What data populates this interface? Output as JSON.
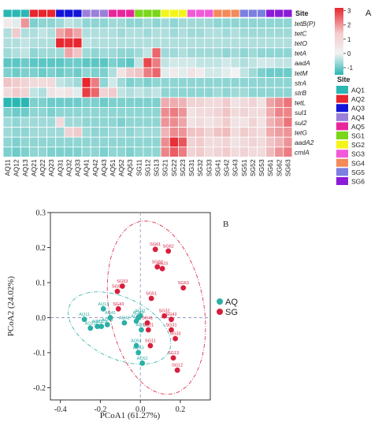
{
  "panels": {
    "a_label": "A",
    "b_label": "B"
  },
  "heatmap": {
    "site_row_label": "Site",
    "samples": [
      "AQ11",
      "AQ12",
      "AQ13",
      "AQ21",
      "AQ22",
      "AQ23",
      "AQ31",
      "AQ32",
      "AQ33",
      "AQ41",
      "AQ42",
      "AQ43",
      "AQ51",
      "AQ52",
      "AQ53",
      "SG11",
      "SG12",
      "SG13",
      "SG21",
      "SG22",
      "SG23",
      "SG31",
      "SG32",
      "SG33",
      "SG41",
      "SG42",
      "SG43",
      "SG51",
      "SG52",
      "SG53",
      "SG61",
      "SG62",
      "SG63"
    ],
    "sites": [
      "AQ1",
      "AQ2",
      "AQ3",
      "AQ4",
      "AQ5",
      "SG1",
      "SG2",
      "SG3",
      "SG4",
      "SG5",
      "SG6"
    ],
    "site_colors": [
      "#2ab7b4",
      "#e8262e",
      "#1413d8",
      "#9b7fd9",
      "#e8269b",
      "#7ad61a",
      "#f3f51a",
      "#f05ad9",
      "#f28a5a",
      "#7b7fe0",
      "#8a1bd6"
    ],
    "genes": [
      "tetB(P)",
      "tetC",
      "tetO",
      "tetA",
      "aadA",
      "tetM",
      "strA",
      "strB",
      "tetL",
      "sul1",
      "sul2",
      "tetG",
      "aadA2",
      "cmlA"
    ],
    "values": [
      [
        0.1,
        -0.1,
        1.2,
        -0.7,
        -0.6,
        -0.6,
        -0.5,
        -0.3,
        -0.4,
        -0.6,
        -0.6,
        -0.6,
        -0.5,
        -0.5,
        -0.6,
        -0.6,
        -0.5,
        -0.6,
        -0.5,
        -0.6,
        -0.5,
        -0.5,
        -0.5,
        -0.5,
        -0.6,
        -0.6,
        -0.6,
        -0.6,
        -0.6,
        -0.6,
        -0.6,
        -0.6,
        -0.6
      ],
      [
        -0.4,
        0.5,
        -0.4,
        -0.4,
        -0.3,
        -0.4,
        1.0,
        1.4,
        1.0,
        -0.4,
        -0.4,
        -0.4,
        -0.4,
        -0.5,
        -0.4,
        -0.4,
        -0.5,
        -0.4,
        -0.4,
        -0.5,
        -0.4,
        -0.5,
        -0.5,
        -0.4,
        -0.4,
        -0.5,
        -0.4,
        -0.5,
        -0.5,
        -0.5,
        -0.5,
        -0.5,
        -0.5
      ],
      [
        -0.4,
        -0.4,
        -0.3,
        -0.4,
        -0.4,
        -0.4,
        2.8,
        2.5,
        2.7,
        -0.3,
        -0.4,
        -0.4,
        -0.4,
        -0.4,
        -0.4,
        -0.4,
        -0.4,
        -0.4,
        -0.4,
        -0.4,
        -0.4,
        -0.4,
        -0.4,
        -0.4,
        -0.4,
        -0.4,
        -0.4,
        -0.4,
        -0.4,
        -0.4,
        -0.4,
        -0.4,
        -0.4
      ],
      [
        -0.5,
        -0.4,
        -0.3,
        -0.6,
        -0.5,
        -0.5,
        -0.5,
        1.0,
        0.6,
        -0.5,
        -0.6,
        -0.5,
        -0.5,
        -0.6,
        -0.6,
        -0.5,
        -0.3,
        1.8,
        -0.5,
        -0.5,
        -0.4,
        -0.5,
        -0.5,
        -0.5,
        -0.5,
        -0.6,
        -0.5,
        -0.6,
        -0.5,
        -0.6,
        -0.6,
        -0.6,
        -0.6
      ],
      [
        -0.9,
        -0.9,
        -0.8,
        -0.9,
        -0.9,
        -0.9,
        -0.9,
        -0.8,
        -0.8,
        -0.9,
        -0.9,
        -0.9,
        -0.7,
        -0.8,
        -0.9,
        -0.3,
        2.2,
        1.5,
        -0.3,
        -0.2,
        -0.2,
        -0.2,
        -0.3,
        -0.3,
        -0.3,
        -0.2,
        -0.3,
        -0.4,
        -0.3,
        -0.2,
        -0.2,
        -0.3,
        -0.3
      ],
      [
        -0.7,
        -0.8,
        -0.7,
        -0.7,
        -0.8,
        -0.7,
        -0.8,
        -0.7,
        -0.8,
        -0.6,
        -0.7,
        -0.7,
        -0.4,
        0.2,
        0.5,
        0.6,
        1.5,
        1.8,
        -0.1,
        0.1,
        -0.1,
        0.2,
        0.1,
        -0.2,
        -0.2,
        -0.1,
        0.0,
        -0.3,
        -0.5,
        -0.7,
        -0.8,
        -0.8,
        -0.8
      ],
      [
        0.6,
        0.5,
        0.4,
        0.3,
        0.3,
        0.3,
        -0.3,
        -0.4,
        -0.5,
        2.6,
        1.5,
        -0.6,
        -0.2,
        -0.5,
        -0.7,
        -0.6,
        -0.7,
        -0.6,
        -0.6,
        -0.6,
        -0.6,
        -0.6,
        -0.6,
        -0.6,
        -0.6,
        -0.6,
        -0.6,
        -0.6,
        -0.6,
        -0.6,
        -0.6,
        -0.6,
        -0.6
      ],
      [
        0.3,
        0.5,
        0.4,
        -0.3,
        -0.4,
        0.2,
        0.1,
        0.2,
        -0.1,
        2.3,
        1.8,
        0.4,
        0.5,
        -0.3,
        -0.4,
        -0.3,
        -0.4,
        -0.3,
        -0.6,
        -0.6,
        -0.6,
        -0.6,
        -0.6,
        -0.6,
        -0.5,
        -0.6,
        -0.5,
        -0.5,
        -0.6,
        -0.6,
        -0.6,
        -0.6,
        -0.6
      ],
      [
        -1.2,
        -1.3,
        -1.2,
        -0.7,
        -0.7,
        -0.8,
        -0.8,
        -0.8,
        -0.8,
        -0.7,
        -0.7,
        -0.8,
        -0.7,
        -0.7,
        -0.7,
        -0.7,
        -0.7,
        -0.7,
        0.9,
        0.9,
        0.8,
        0.4,
        0.4,
        0.3,
        0.3,
        0.5,
        0.2,
        0.3,
        0.4,
        0.2,
        1.0,
        1.3,
        1.6
      ],
      [
        -0.7,
        -0.8,
        -0.8,
        -0.6,
        -0.6,
        -0.7,
        -0.6,
        -0.6,
        -0.6,
        -0.6,
        -0.6,
        -0.6,
        -0.6,
        -0.6,
        -0.6,
        -0.6,
        -0.6,
        -0.6,
        1.3,
        1.5,
        1.2,
        0.2,
        0.3,
        0.3,
        0.4,
        0.6,
        0.3,
        0.4,
        0.3,
        0.3,
        0.9,
        1.4,
        1.4
      ],
      [
        -0.5,
        -0.6,
        -0.5,
        -0.5,
        -0.5,
        -0.5,
        0.3,
        -0.5,
        -0.5,
        -0.6,
        -0.6,
        -0.6,
        -0.6,
        -0.7,
        -0.6,
        -0.6,
        -0.6,
        -0.6,
        1.2,
        1.3,
        1.0,
        0.2,
        0.3,
        0.2,
        0.3,
        0.5,
        0.2,
        0.2,
        0.4,
        0.2,
        0.8,
        1.1,
        1.6
      ],
      [
        -0.5,
        -0.6,
        -0.6,
        -0.5,
        -0.5,
        -0.5,
        -0.5,
        0.4,
        0.5,
        -0.5,
        -0.6,
        -0.6,
        -0.5,
        -0.5,
        -0.6,
        -0.5,
        -0.5,
        -0.5,
        0.8,
        1.3,
        1.2,
        0.6,
        0.6,
        0.4,
        0.6,
        0.7,
        0.3,
        0.5,
        0.4,
        0.3,
        0.9,
        1.1,
        1.2
      ],
      [
        -0.6,
        -0.7,
        -0.6,
        -0.6,
        -0.6,
        -0.6,
        -0.6,
        -0.6,
        -0.6,
        -0.6,
        -0.6,
        -0.6,
        -0.6,
        -0.6,
        -0.6,
        -0.6,
        -0.6,
        -0.6,
        1.3,
        2.5,
        2.0,
        0.4,
        0.5,
        0.3,
        0.3,
        0.4,
        0.2,
        0.3,
        0.4,
        0.3,
        0.6,
        0.8,
        1.2
      ],
      [
        -0.7,
        -0.8,
        -0.7,
        -0.6,
        -0.6,
        -0.7,
        -0.7,
        -0.7,
        -0.7,
        -0.6,
        -0.6,
        -0.7,
        -0.6,
        -0.6,
        -0.7,
        -0.6,
        -0.6,
        -0.6,
        1.4,
        1.9,
        1.5,
        0.4,
        0.5,
        0.3,
        0.4,
        0.5,
        0.3,
        0.4,
        0.3,
        0.3,
        0.7,
        1.2,
        1.5
      ]
    ],
    "colorbar_ticks": [
      "3",
      "2",
      "1",
      "0",
      "-1"
    ],
    "colorbar_values": [
      3,
      2,
      1,
      0,
      -1
    ],
    "colorbar_range": [
      -1.5,
      3.2
    ],
    "colors": {
      "low": "#2ab7b4",
      "mid": "#f2f2f2",
      "high": "#e8262e"
    }
  },
  "chart_data": {
    "type": "scatter",
    "xlabel": "PCoA1 (61.27%)",
    "ylabel": "PCoA2 (24.02%)",
    "xlim": [
      -0.45,
      0.35
    ],
    "ylim": [
      -0.235,
      0.3
    ],
    "xticks": [
      -0.4,
      -0.2,
      0.0,
      0.2
    ],
    "yticks": [
      -0.2,
      -0.1,
      0.0,
      0.1,
      0.2,
      0.3
    ],
    "xtick_labels": [
      "-0.4",
      "-0.2",
      "0.0",
      "0.2"
    ],
    "ytick_labels": [
      "-0.2",
      "-0.1",
      "0.0",
      "0.1",
      "0.2",
      "0.3"
    ],
    "series": [
      {
        "name": "AQ",
        "color": "#2ab0a6",
        "points": [
          {
            "label": "AQ11",
            "x": -0.28,
            "y": -0.005
          },
          {
            "label": "AQ12",
            "x": -0.02,
            "y": -0.01
          },
          {
            "label": "AQ13",
            "x": -0.185,
            "y": 0.025
          },
          {
            "label": "AQ21",
            "x": -0.215,
            "y": -0.025
          },
          {
            "label": "AQ22",
            "x": -0.25,
            "y": -0.03
          },
          {
            "label": "AQ23",
            "x": -0.195,
            "y": -0.025
          },
          {
            "label": "AQ31",
            "x": 0.0,
            "y": 0.005
          },
          {
            "label": "AQ32",
            "x": 0.005,
            "y": -0.035
          },
          {
            "label": "AQ33",
            "x": -0.01,
            "y": 0.0
          },
          {
            "label": "AQ41",
            "x": -0.15,
            "y": 0.0
          },
          {
            "label": "AQ42",
            "x": -0.08,
            "y": -0.015
          },
          {
            "label": "AQ43",
            "x": -0.165,
            "y": -0.02
          },
          {
            "label": "AQ51",
            "x": -0.02,
            "y": -0.08
          },
          {
            "label": "AQ52",
            "x": 0.01,
            "y": -0.13
          },
          {
            "label": "AQ53",
            "x": -0.01,
            "y": -0.1
          }
        ]
      },
      {
        "name": "SG",
        "color": "#d81e3c",
        "points": [
          {
            "label": "SG11",
            "x": 0.05,
            "y": -0.08
          },
          {
            "label": "SG12",
            "x": 0.185,
            "y": -0.15
          },
          {
            "label": "SG13",
            "x": 0.165,
            "y": -0.115
          },
          {
            "label": "SG21",
            "x": 0.04,
            "y": -0.035
          },
          {
            "label": "SG22",
            "x": 0.085,
            "y": 0.145
          },
          {
            "label": "SG23",
            "x": 0.11,
            "y": 0.14
          },
          {
            "label": "SG31",
            "x": 0.155,
            "y": -0.035
          },
          {
            "label": "SG32",
            "x": 0.12,
            "y": 0.005
          },
          {
            "label": "SG33",
            "x": 0.175,
            "y": -0.06
          },
          {
            "label": "SG41",
            "x": 0.035,
            "y": -0.015
          },
          {
            "label": "SG42",
            "x": 0.155,
            "y": -0.005
          },
          {
            "label": "SG43",
            "x": -0.11,
            "y": 0.025
          },
          {
            "label": "SG51",
            "x": 0.055,
            "y": 0.055
          },
          {
            "label": "SG52",
            "x": -0.115,
            "y": 0.075
          },
          {
            "label": "SG53",
            "x": -0.09,
            "y": 0.09
          },
          {
            "label": "SG61",
            "x": 0.075,
            "y": 0.195
          },
          {
            "label": "SG62",
            "x": 0.14,
            "y": 0.19
          },
          {
            "label": "SG63",
            "x": 0.215,
            "y": 0.085
          }
        ]
      }
    ],
    "legend_position": "right"
  }
}
